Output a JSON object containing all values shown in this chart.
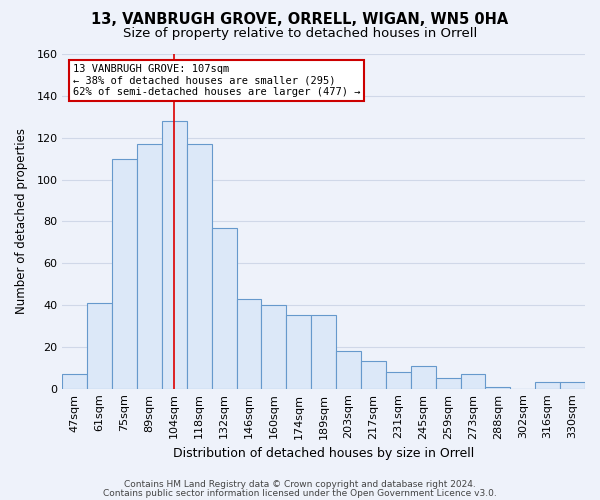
{
  "title": "13, VANBRUGH GROVE, ORRELL, WIGAN, WN5 0HA",
  "subtitle": "Size of property relative to detached houses in Orrell",
  "xlabel": "Distribution of detached houses by size in Orrell",
  "ylabel": "Number of detached properties",
  "categories": [
    "47sqm",
    "61sqm",
    "75sqm",
    "89sqm",
    "104sqm",
    "118sqm",
    "132sqm",
    "146sqm",
    "160sqm",
    "174sqm",
    "189sqm",
    "203sqm",
    "217sqm",
    "231sqm",
    "245sqm",
    "259sqm",
    "273sqm",
    "288sqm",
    "302sqm",
    "316sqm",
    "330sqm"
  ],
  "values": [
    7,
    41,
    110,
    117,
    128,
    117,
    77,
    43,
    40,
    35,
    35,
    18,
    13,
    8,
    11,
    5,
    7,
    1,
    0,
    3,
    3
  ],
  "bar_color": "#dce8f8",
  "bar_edge_color": "#6699cc",
  "background_color": "#eef2fa",
  "grid_color": "#d0d8e8",
  "red_line_x": 4,
  "annotation_line1": "13 VANBRUGH GROVE: 107sqm",
  "annotation_line2": "← 38% of detached houses are smaller (295)",
  "annotation_line3": "62% of semi-detached houses are larger (477) →",
  "annotation_box_color": "#ffffff",
  "annotation_box_edge_color": "#cc0000",
  "footer_line1": "Contains HM Land Registry data © Crown copyright and database right 2024.",
  "footer_line2": "Contains public sector information licensed under the Open Government Licence v3.0.",
  "ylim": [
    0,
    160
  ],
  "yticks": [
    0,
    20,
    40,
    60,
    80,
    100,
    120,
    140,
    160
  ],
  "title_fontsize": 10.5,
  "subtitle_fontsize": 9.5,
  "xlabel_fontsize": 9,
  "ylabel_fontsize": 8.5,
  "tick_fontsize": 8,
  "annot_fontsize": 7.5,
  "footer_fontsize": 6.5
}
